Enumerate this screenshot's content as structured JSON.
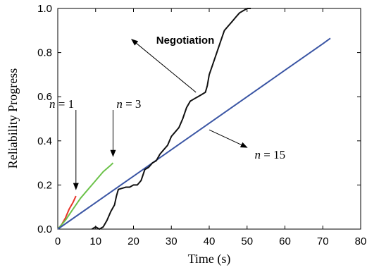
{
  "chart_data": {
    "type": "line",
    "title": "",
    "xlabel": "Time (s)",
    "ylabel": "Reliability Progress",
    "xlim": [
      0,
      80
    ],
    "ylim": [
      0,
      1.0
    ],
    "x_ticks": [
      0,
      10,
      20,
      30,
      40,
      50,
      60,
      70,
      80
    ],
    "y_ticks": [
      0.0,
      0.2,
      0.4,
      0.6,
      0.8,
      1.0
    ],
    "x_tick_labels": [
      "0",
      "10",
      "20",
      "30",
      "40",
      "50",
      "60",
      "70",
      "80"
    ],
    "y_tick_labels": [
      "0.0",
      "0.2",
      "0.4",
      "0.6",
      "0.8",
      "1.0"
    ],
    "grid": false,
    "legend": "none",
    "series": [
      {
        "color": "#e8352a",
        "points": [
          [
            0,
            0
          ],
          [
            1,
            0.02
          ],
          [
            2,
            0.05
          ],
          [
            3,
            0.09
          ],
          [
            4,
            0.12
          ],
          [
            4.8,
            0.15
          ]
        ]
      },
      {
        "color": "#6cc24a",
        "points": [
          [
            0,
            0
          ],
          [
            2,
            0.04
          ],
          [
            4,
            0.09
          ],
          [
            6,
            0.14
          ],
          [
            8,
            0.18
          ],
          [
            10,
            0.22
          ],
          [
            12,
            0.26
          ],
          [
            14,
            0.29
          ],
          [
            14.6,
            0.3
          ]
        ]
      },
      {
        "color": "#3a55a4",
        "points": [
          [
            0,
            0
          ],
          [
            10,
            0.12
          ],
          [
            20,
            0.24
          ],
          [
            30,
            0.36
          ],
          [
            40,
            0.48
          ],
          [
            50,
            0.6
          ],
          [
            60,
            0.72
          ],
          [
            70,
            0.84
          ],
          [
            72,
            0.865
          ]
        ]
      },
      {
        "color": "#111111",
        "points": [
          [
            9,
            0
          ],
          [
            10,
            0.01
          ],
          [
            11,
            0.0
          ],
          [
            12,
            0.01
          ],
          [
            13,
            0.04
          ],
          [
            14,
            0.08
          ],
          [
            15,
            0.11
          ],
          [
            15.5,
            0.15
          ],
          [
            16,
            0.18
          ],
          [
            17,
            0.185
          ],
          [
            18,
            0.19
          ],
          [
            19,
            0.19
          ],
          [
            20,
            0.2
          ],
          [
            21,
            0.2
          ],
          [
            22,
            0.22
          ],
          [
            23,
            0.27
          ],
          [
            24,
            0.28
          ],
          [
            25,
            0.3
          ],
          [
            26,
            0.31
          ],
          [
            27,
            0.34
          ],
          [
            28,
            0.36
          ],
          [
            29,
            0.38
          ],
          [
            30,
            0.42
          ],
          [
            31,
            0.44
          ],
          [
            32,
            0.46
          ],
          [
            33,
            0.5
          ],
          [
            34,
            0.55
          ],
          [
            35,
            0.58
          ],
          [
            36,
            0.59
          ],
          [
            37,
            0.6
          ],
          [
            38,
            0.61
          ],
          [
            39,
            0.62
          ],
          [
            39.5,
            0.65
          ],
          [
            40,
            0.7
          ],
          [
            41,
            0.75
          ],
          [
            42,
            0.8
          ],
          [
            43,
            0.85
          ],
          [
            44,
            0.9
          ],
          [
            45,
            0.92
          ],
          [
            46,
            0.94
          ],
          [
            47,
            0.96
          ],
          [
            48,
            0.98
          ],
          [
            49,
            0.99
          ],
          [
            50,
            1.0
          ],
          [
            51,
            1.0
          ]
        ]
      }
    ],
    "annotations": [
      {
        "text": "Negotiation",
        "bold": true,
        "anchor": [
          26,
          0.84
        ],
        "arrow_from": [
          36.5,
          0.62
        ],
        "arrow_to": [
          19.5,
          0.86
        ]
      },
      {
        "text": "n = 1",
        "anchor": [
          4.3,
          0.55
        ],
        "arrow_from": [
          4.8,
          0.54
        ],
        "arrow_to": [
          4.8,
          0.18
        ]
      },
      {
        "text": "n = 3",
        "anchor": [
          15.5,
          0.55
        ],
        "arrow_from": [
          14.6,
          0.54
        ],
        "arrow_to": [
          14.6,
          0.33
        ]
      },
      {
        "text": "n = 15",
        "anchor": [
          52,
          0.32
        ],
        "arrow_from": [
          40,
          0.45
        ],
        "arrow_to": [
          50,
          0.37
        ]
      }
    ]
  }
}
